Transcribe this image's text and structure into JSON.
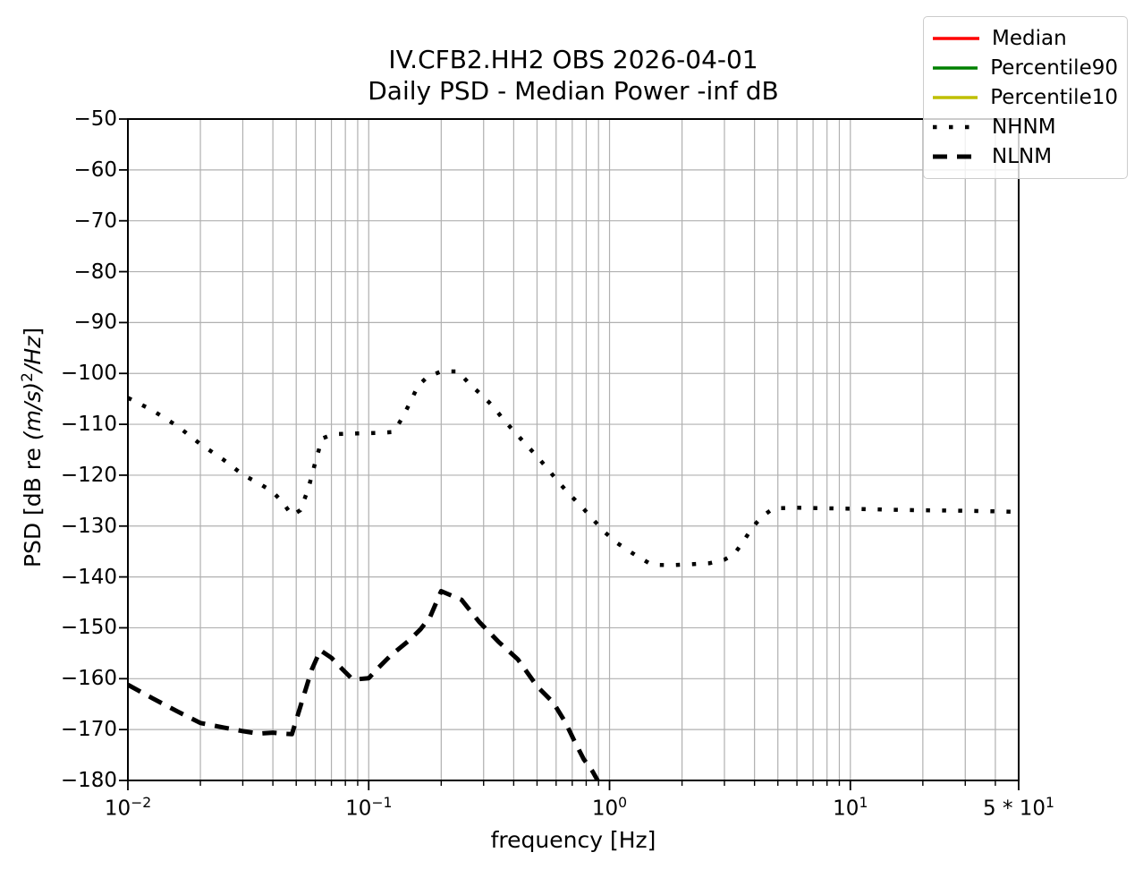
{
  "title": {
    "line1": "IV.CFB2.HH2 OBS 2026-04-01",
    "line2": "Daily PSD - Median Power -inf dB"
  },
  "axes": {
    "xlabel": "frequency [Hz]",
    "ylabel": {
      "prefix": "PSD [dB re ",
      "math": "(m/s)",
      "sup": "2",
      "math2": "/Hz",
      "suffix": "]"
    },
    "x_ticks": [
      {
        "f": 0.01,
        "pre": "",
        "base": "10",
        "exp": "−2"
      },
      {
        "f": 0.1,
        "pre": "",
        "base": "10",
        "exp": "−1"
      },
      {
        "f": 1,
        "pre": "",
        "base": "10",
        "exp": "0"
      },
      {
        "f": 10,
        "pre": "",
        "base": "10",
        "exp": "1"
      },
      {
        "f": 50,
        "pre": "5 * ",
        "base": "10",
        "exp": "1"
      }
    ],
    "y_ticks": [
      {
        "v": -50,
        "label": "−50"
      },
      {
        "v": -60,
        "label": "−60"
      },
      {
        "v": -70,
        "label": "−70"
      },
      {
        "v": -80,
        "label": "−80"
      },
      {
        "v": -90,
        "label": "−90"
      },
      {
        "v": -100,
        "label": "−100"
      },
      {
        "v": -110,
        "label": "−110"
      },
      {
        "v": -120,
        "label": "−120"
      },
      {
        "v": -130,
        "label": "−130"
      },
      {
        "v": -140,
        "label": "−140"
      },
      {
        "v": -150,
        "label": "−150"
      },
      {
        "v": -160,
        "label": "−160"
      },
      {
        "v": -170,
        "label": "−170"
      },
      {
        "v": -180,
        "label": "−180"
      }
    ],
    "grid_color": "#b0b0b0",
    "spine_color": "#000000"
  },
  "legend": {
    "entries": [
      {
        "label": "Median",
        "color": "#ff0000",
        "style": "solid"
      },
      {
        "label": "Percentile90",
        "color": "#008000",
        "style": "solid"
      },
      {
        "label": "Percentile10",
        "color": "#bfbf00",
        "style": "solid"
      },
      {
        "label": "NHNM",
        "color": "#000000",
        "style": "dotted"
      },
      {
        "label": "NLNM",
        "color": "#000000",
        "style": "dashed"
      }
    ]
  },
  "chart_data": {
    "type": "line",
    "title": "IV.CFB2.HH2 OBS 2026-04-01",
    "subtitle": "Daily PSD - Median Power -inf dB",
    "xlabel": "frequency [Hz]",
    "ylabel": "PSD [dB re (m/s)^2/Hz]",
    "x_scale": "log",
    "xlim": [
      0.01,
      50
    ],
    "ylim": [
      -180,
      -50
    ],
    "y_tick_step": 10,
    "grid": true,
    "legend_position": "upper right",
    "series": [
      {
        "name": "Median",
        "color": "#ff0000",
        "style": "solid",
        "points": []
      },
      {
        "name": "Percentile90",
        "color": "#008000",
        "style": "solid",
        "points": []
      },
      {
        "name": "Percentile10",
        "color": "#bfbf00",
        "style": "solid",
        "points": []
      },
      {
        "name": "NHNM",
        "color": "#000000",
        "style": "dotted",
        "points": [
          [
            0.01,
            -104.8
          ],
          [
            0.0126,
            -107.2
          ],
          [
            0.016,
            -110.3
          ],
          [
            0.02,
            -113.9
          ],
          [
            0.025,
            -117.0
          ],
          [
            0.03,
            -119.9
          ],
          [
            0.035,
            -121.6
          ],
          [
            0.04,
            -123.3
          ],
          [
            0.044,
            -125.4
          ],
          [
            0.048,
            -127.9
          ],
          [
            0.052,
            -126.9
          ],
          [
            0.056,
            -122.8
          ],
          [
            0.06,
            -117.5
          ],
          [
            0.064,
            -112.8
          ],
          [
            0.068,
            -112.3
          ],
          [
            0.075,
            -111.9
          ],
          [
            0.09,
            -111.8
          ],
          [
            0.11,
            -111.7
          ],
          [
            0.127,
            -111.5
          ],
          [
            0.138,
            -108.7
          ],
          [
            0.15,
            -105.3
          ],
          [
            0.16,
            -102.5
          ],
          [
            0.175,
            -100.7
          ],
          [
            0.2,
            -99.6
          ],
          [
            0.235,
            -99.6
          ],
          [
            0.26,
            -101.9
          ],
          [
            0.3,
            -104.6
          ],
          [
            0.33,
            -106.6
          ],
          [
            0.36,
            -108.9
          ],
          [
            0.4,
            -111.3
          ],
          [
            0.45,
            -114.0
          ],
          [
            0.5,
            -116.3
          ],
          [
            0.55,
            -118.6
          ],
          [
            0.61,
            -121.2
          ],
          [
            0.68,
            -123.7
          ],
          [
            0.76,
            -126.0
          ],
          [
            0.85,
            -128.6
          ],
          [
            0.96,
            -131.3
          ],
          [
            1.08,
            -133.4
          ],
          [
            1.28,
            -135.7
          ],
          [
            1.5,
            -137.6
          ],
          [
            1.8,
            -137.7
          ],
          [
            2.2,
            -137.5
          ],
          [
            2.6,
            -137.3
          ],
          [
            3.0,
            -136.6
          ],
          [
            3.3,
            -135.5
          ],
          [
            3.6,
            -133.0
          ],
          [
            3.9,
            -130.4
          ],
          [
            4.3,
            -128.1
          ],
          [
            4.8,
            -126.5
          ],
          [
            6,
            -126.4
          ],
          [
            8,
            -126.5
          ],
          [
            10,
            -126.6
          ],
          [
            15,
            -126.8
          ],
          [
            20,
            -126.9
          ],
          [
            30,
            -127.0
          ],
          [
            40,
            -127.1
          ],
          [
            50,
            -127.2
          ]
        ]
      },
      {
        "name": "NLNM",
        "color": "#000000",
        "style": "dashed",
        "points": [
          [
            0.01,
            -161.2
          ],
          [
            0.0126,
            -163.8
          ],
          [
            0.016,
            -166.4
          ],
          [
            0.02,
            -168.7
          ],
          [
            0.025,
            -169.6
          ],
          [
            0.03,
            -170.3
          ],
          [
            0.035,
            -170.8
          ],
          [
            0.04,
            -170.6
          ],
          [
            0.044,
            -170.8
          ],
          [
            0.048,
            -170.9
          ],
          [
            0.052,
            -165.5
          ],
          [
            0.058,
            -158.2
          ],
          [
            0.063,
            -154.4
          ],
          [
            0.07,
            -155.9
          ],
          [
            0.078,
            -158.2
          ],
          [
            0.086,
            -160.2
          ],
          [
            0.1,
            -159.9
          ],
          [
            0.11,
            -157.8
          ],
          [
            0.123,
            -155.5
          ],
          [
            0.147,
            -152.5
          ],
          [
            0.164,
            -150.3
          ],
          [
            0.18,
            -147.8
          ],
          [
            0.2,
            -142.8
          ],
          [
            0.243,
            -144.5
          ],
          [
            0.287,
            -148.8
          ],
          [
            0.345,
            -152.7
          ],
          [
            0.416,
            -156.2
          ],
          [
            0.5,
            -161.5
          ],
          [
            0.584,
            -164.7
          ],
          [
            0.658,
            -168.7
          ],
          [
            0.714,
            -172.2
          ],
          [
            0.781,
            -175.8
          ],
          [
            0.85,
            -178.2
          ],
          [
            0.93,
            -181.5
          ]
        ]
      }
    ]
  }
}
